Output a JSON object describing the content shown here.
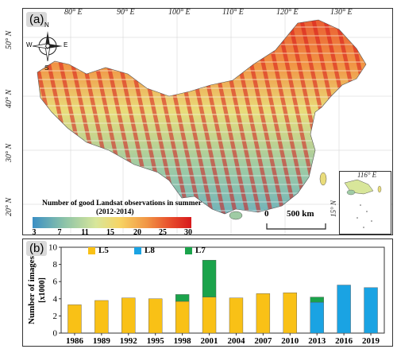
{
  "map": {
    "panel_label": "(a)",
    "lon_labels": [
      "80° E",
      "90° E",
      "100° E",
      "110° E",
      "120° E",
      "130° E"
    ],
    "lat_labels": [
      "50° N",
      "40° N",
      "30° N",
      "20° N"
    ],
    "compass": {
      "n": "N",
      "s": "S",
      "e": "E",
      "w": "W"
    },
    "inset": {
      "lon_label": "116° E",
      "lat_label": "15° N"
    },
    "scale_bar": {
      "start": "0",
      "end": "500 km"
    },
    "colorbar": {
      "title": "Number of good Landsat observations in summer",
      "subtitle": "(2012-2014)",
      "ticks": [
        "3",
        "7",
        "11",
        "15",
        "20",
        "25",
        "30"
      ],
      "colors": [
        "#3b8fc4",
        "#8cc3a8",
        "#d8e69a",
        "#f7d463",
        "#f19545",
        "#e8502d",
        "#d7191c"
      ]
    }
  },
  "chart_data": {
    "type": "bar",
    "panel_label": "(b)",
    "ylabel_line1": "Number of images",
    "ylabel_line2": "[x1000]",
    "ylim": [
      0,
      10
    ],
    "yticks": [
      "0",
      "2",
      "4",
      "6",
      "8",
      "10"
    ],
    "categories": [
      "1986",
      "1989",
      "1992",
      "1995",
      "1998",
      "2001",
      "2004",
      "2007",
      "2010",
      "2013",
      "2016",
      "2019"
    ],
    "series": [
      {
        "name": "L5",
        "color": "#f9c116",
        "values": [
          3.3,
          3.8,
          4.1,
          4.0,
          3.7,
          4.2,
          4.1,
          4.6,
          4.7,
          0,
          0,
          0
        ]
      },
      {
        "name": "L8",
        "color": "#1aa3e3",
        "values": [
          0,
          0,
          0,
          0,
          0,
          0,
          0,
          0,
          0,
          3.6,
          5.6,
          5.3
        ]
      },
      {
        "name": "L7",
        "color": "#1ba34b",
        "values": [
          0,
          0,
          0,
          0,
          0.8,
          4.3,
          0,
          0,
          0,
          0.6,
          0,
          0
        ]
      }
    ],
    "stack_order": [
      "L8",
      "L5",
      "L7"
    ]
  }
}
